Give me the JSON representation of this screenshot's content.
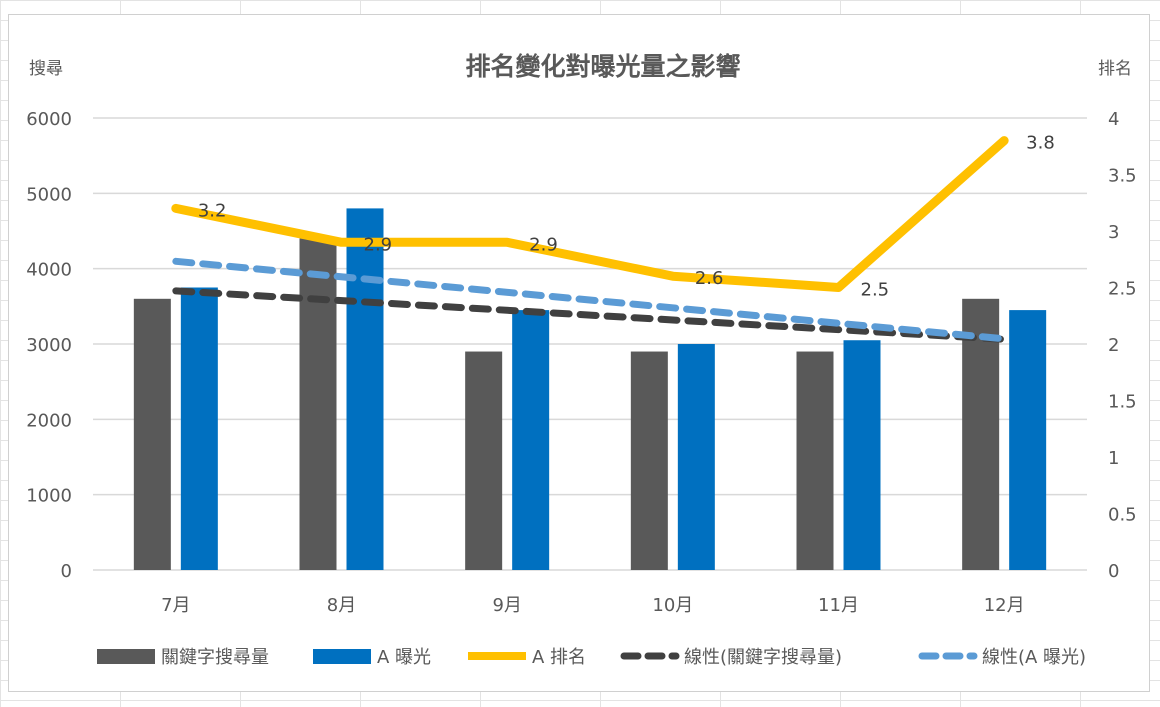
{
  "chart_data": {
    "type": "bar",
    "title": "排名變化對曝光量之影響",
    "ylabel": "搜尋",
    "y2label": "排名",
    "categories": [
      "7月",
      "8月",
      "9月",
      "10月",
      "11月",
      "12月"
    ],
    "ylim": [
      0,
      6000
    ],
    "yticks": [
      0,
      1000,
      2000,
      3000,
      4000,
      5000,
      6000
    ],
    "y2lim": [
      0,
      4
    ],
    "y2ticks": [
      "0",
      "0.5",
      "1",
      "1.5",
      "2",
      "2.5",
      "3",
      "3.5",
      "4"
    ],
    "series": [
      {
        "name": "關鍵字搜尋量",
        "kind": "bar",
        "axis": "primary",
        "color": "#595959",
        "values": [
          3600,
          4400,
          2900,
          2900,
          2900,
          3600
        ]
      },
      {
        "name": "A 曝光",
        "kind": "bar",
        "axis": "primary",
        "color": "#0070C0",
        "values": [
          3750,
          4800,
          3450,
          3000,
          3050,
          3450
        ]
      },
      {
        "name": "A 排名",
        "kind": "line",
        "axis": "secondary",
        "color": "#FFC000",
        "values": [
          3.2,
          2.9,
          2.9,
          2.6,
          2.5,
          3.8
        ],
        "labels": [
          "3.2",
          "2.9",
          "2.9",
          "2.6",
          "2.5",
          "3.8"
        ]
      },
      {
        "name": "線性(關鍵字搜尋量)",
        "kind": "trend",
        "of": 0,
        "color": "#404040"
      },
      {
        "name": "線性(A 曝光)",
        "kind": "trend",
        "of": 1,
        "color": "#5B9BD5"
      }
    ],
    "grid": true,
    "legend": "bottom"
  }
}
